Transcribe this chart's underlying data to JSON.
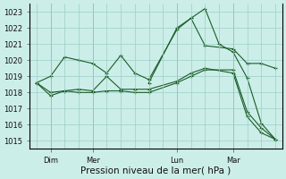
{
  "bg_color": "#cceee8",
  "line_color": "#1a5c28",
  "grid_color": "#9ecec8",
  "ylim": [
    1014.5,
    1023.5
  ],
  "yticks": [
    1015,
    1016,
    1017,
    1018,
    1019,
    1020,
    1021,
    1022,
    1023
  ],
  "xlabel": "Pression niveau de la mer( hPa )",
  "day_labels": [
    "Dim",
    "Mer",
    "Lun",
    "Mar"
  ],
  "day_positions": [
    1,
    4,
    10,
    14
  ],
  "xlim": [
    -0.5,
    17.5
  ],
  "lines": [
    {
      "x": [
        0,
        1,
        2,
        3,
        4,
        5,
        6,
        7,
        8,
        10,
        11,
        12,
        14,
        15,
        16,
        17
      ],
      "y": [
        1018.6,
        1019.0,
        1020.2,
        1020.0,
        1019.8,
        1019.2,
        1020.3,
        1019.2,
        1018.8,
        1021.9,
        1022.6,
        1020.9,
        1020.7,
        1019.8,
        1019.8,
        1019.5
      ]
    },
    {
      "x": [
        0,
        1,
        2,
        3,
        4,
        5,
        6,
        7,
        8,
        10,
        11,
        12,
        14,
        15,
        16,
        17
      ],
      "y": [
        1018.6,
        1018.0,
        1018.1,
        1018.0,
        1018.0,
        1018.1,
        1018.1,
        1018.0,
        1018.0,
        1018.6,
        1019.0,
        1019.4,
        1019.4,
        1016.8,
        1015.8,
        1015.1
      ]
    },
    {
      "x": [
        0,
        1,
        2,
        3,
        4,
        5,
        6,
        7,
        8,
        10,
        11,
        12,
        14,
        15,
        16,
        17
      ],
      "y": [
        1018.6,
        1017.8,
        1018.1,
        1018.2,
        1018.1,
        1019.0,
        1018.2,
        1018.2,
        1018.2,
        1018.7,
        1019.2,
        1019.5,
        1019.2,
        1016.5,
        1015.5,
        1015.1
      ]
    },
    {
      "x": [
        8,
        10,
        11,
        12,
        13,
        14,
        15,
        16,
        17
      ],
      "y": [
        1018.6,
        1022.0,
        1022.6,
        1023.2,
        1021.0,
        1020.5,
        1018.9,
        1016.1,
        1015.1
      ]
    }
  ],
  "vline_positions": [
    1,
    4,
    10,
    14
  ],
  "xlabel_fontsize": 7.5,
  "tick_fontsize": 6,
  "marker": "+"
}
